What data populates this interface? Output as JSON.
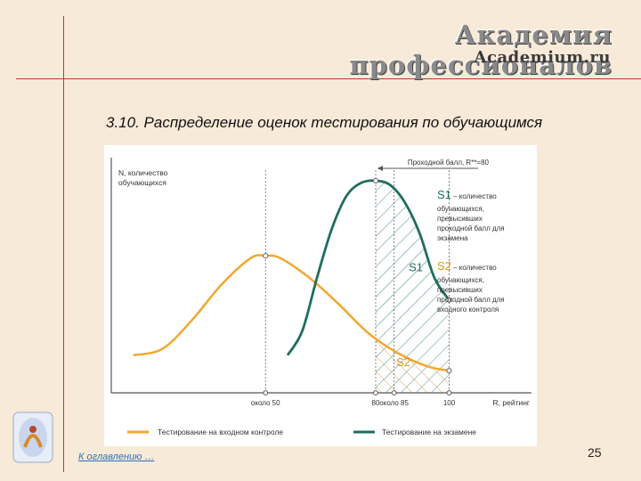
{
  "header": {
    "brand_ru": "Академия профессионалов",
    "brand_en": "Academium.ru"
  },
  "slide": {
    "title": "3.10. Распределение оценок тестирования по обучающимся",
    "page_number": "25",
    "toc_link": "К оглавлению …"
  },
  "colors": {
    "entry_series": "#f0a830",
    "exam_series": "#1f6e5e",
    "axis": "#555555",
    "background": "#f8ead8",
    "accent_line": "#b23a3a"
  },
  "chart_data": {
    "type": "line",
    "ylabel_lines": [
      "N, количество",
      "обучающихся"
    ],
    "xlabel": "R, рейтинг",
    "xlim": [
      8,
      120
    ],
    "ylim": [
      0,
      100
    ],
    "x_ticks": [
      {
        "x": 50,
        "label": "около 50"
      },
      {
        "x": 80,
        "label": "80"
      },
      {
        "x": 85,
        "label": "около 85"
      },
      {
        "x": 100,
        "label": "100"
      }
    ],
    "pass_score_label": "Проходной балл, R**=80",
    "series": [
      {
        "name": "Тестирование на входном контроле",
        "color": "#f0a830",
        "points": [
          [
            14,
            17
          ],
          [
            22,
            20
          ],
          [
            30,
            33
          ],
          [
            38,
            49
          ],
          [
            46,
            61
          ],
          [
            50,
            62
          ],
          [
            54,
            61
          ],
          [
            62,
            52
          ],
          [
            70,
            40
          ],
          [
            78,
            27
          ],
          [
            86,
            18
          ],
          [
            94,
            12
          ],
          [
            100,
            10
          ]
        ]
      },
      {
        "name": "Тестирование на экзамене",
        "color": "#1f6e5e",
        "points": [
          [
            56,
            17
          ],
          [
            60,
            28
          ],
          [
            64,
            52
          ],
          [
            68,
            74
          ],
          [
            72,
            89
          ],
          [
            76,
            95
          ],
          [
            80,
            96
          ],
          [
            84,
            94
          ],
          [
            88,
            86
          ],
          [
            92,
            72
          ],
          [
            96,
            52
          ],
          [
            100,
            42
          ]
        ]
      }
    ],
    "regions": [
      {
        "name": "S1",
        "from": 80,
        "to": 100
      },
      {
        "name": "S2",
        "from": 80,
        "to": 100
      }
    ],
    "legend": {
      "placement": "bottom",
      "items": [
        "Тестирование на входном контроле",
        "Тестирование на экзамене"
      ]
    },
    "annotations": [
      {
        "name": "S1",
        "text": "– количество",
        "lines": [
          "обучающихся,",
          "превысивших",
          "проходной балл для",
          "экзамена"
        ]
      },
      {
        "name": "S2",
        "text": "– количество",
        "lines": [
          "обучающихся,",
          "превысивших",
          "проходной балл для",
          "входного контроля"
        ]
      }
    ],
    "grid": false
  }
}
